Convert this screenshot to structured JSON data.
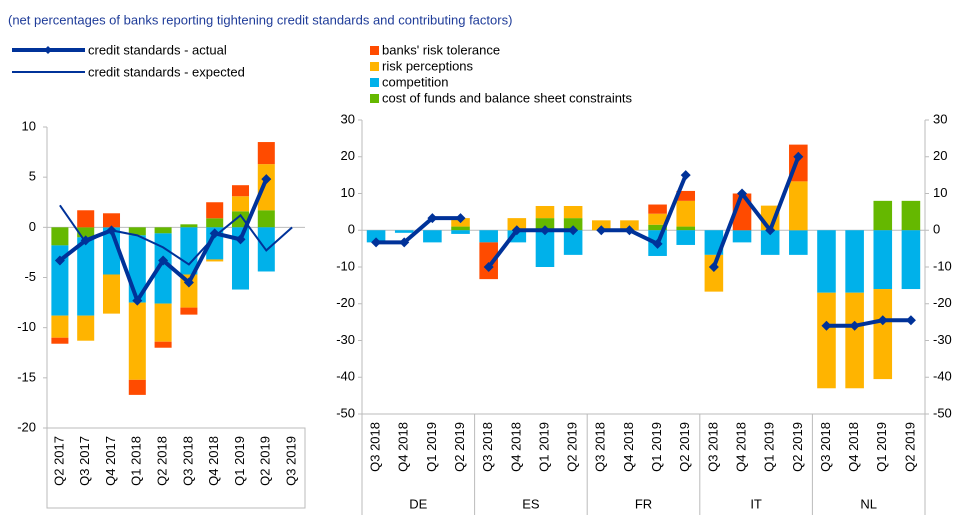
{
  "subtitle": "(net percentages of banks reporting tightening credit standards and contributing factors)",
  "chart_data": [
    {
      "type": "bar",
      "categories": [
        "Q2 2017",
        "Q3 2017",
        "Q4 2017",
        "Q1 2018",
        "Q2 2018",
        "Q3 2018",
        "Q4 2018",
        "Q1 2019",
        "Q2 2019",
        "Q3 2019"
      ],
      "series": [
        {
          "name": "banks' risk tolerance",
          "color": "#ff4b00",
          "values": [
            -0.6,
            1.7,
            1.4,
            -1.5,
            -0.6,
            -0.7,
            1.6,
            1.1,
            2.2,
            null
          ]
        },
        {
          "name": "risk perceptions",
          "color": "#ffb400",
          "values": [
            -2.2,
            -2.5,
            -3.9,
            -7.7,
            -3.8,
            -3.3,
            -0.2,
            1.5,
            4.6,
            null
          ]
        },
        {
          "name": "competition",
          "color": "#00b1ea",
          "values": [
            -7,
            -7.8,
            -4.7,
            -6.7,
            -7,
            -4.7,
            -3.2,
            -6.2,
            -4.4,
            null
          ]
        },
        {
          "name": "cost of funds and balance sheet constraints",
          "color": "#65b800",
          "values": [
            -1.8,
            -1,
            0,
            -0.8,
            -0.6,
            0.3,
            0.9,
            1.6,
            1.7,
            null
          ]
        }
      ],
      "lines": [
        {
          "name": "credit standards - actual",
          "color": "#003299",
          "values": [
            -3.3,
            -1.3,
            -0.3,
            -7.3,
            -3.3,
            -5.5,
            -0.6,
            -1.2,
            4.8,
            null
          ]
        },
        {
          "name": "credit standards - expected",
          "color": "#003299",
          "values": [
            2.2,
            -1.5,
            -0.3,
            -0.8,
            -2,
            -3.7,
            -0.9,
            1.2,
            -2.3,
            0
          ]
        }
      ],
      "ylim": [
        -20,
        10
      ],
      "yticks": [
        -20,
        -15,
        -10,
        -5,
        0,
        5,
        10
      ]
    },
    {
      "type": "grouped-bar",
      "groups": [
        "DE",
        "ES",
        "FR",
        "IT",
        "NL"
      ],
      "categories": [
        "Q3 2018",
        "Q4 2018",
        "Q1 2019",
        "Q2 2019",
        "Q3 2018",
        "Q4 2018",
        "Q1 2019",
        "Q2 2019",
        "Q3 2018",
        "Q4 2018",
        "Q1 2019",
        "Q2 2019",
        "Q3 2018",
        "Q4 2018",
        "Q1 2019",
        "Q2 2019",
        "Q3 2018",
        "Q4 2018",
        "Q1 2019",
        "Q2 2019"
      ],
      "series": [
        {
          "color": "#ff4b00",
          "values": [
            0,
            0,
            0,
            0,
            -10,
            0,
            0,
            0,
            0,
            0,
            2.5,
            2.7,
            0,
            10,
            0,
            10,
            0,
            0,
            0,
            0
          ]
        },
        {
          "color": "#ffb400",
          "values": [
            0,
            0,
            0,
            2.3,
            0,
            3.3,
            3.3,
            3.3,
            2.7,
            2.7,
            3,
            7,
            -10,
            0,
            6.7,
            13.3,
            -26,
            -26,
            -24.5,
            0
          ]
        },
        {
          "color": "#00b1ea",
          "values": [
            -3.3,
            -0.7,
            -3.3,
            -1,
            -3.3,
            -3.3,
            -10,
            -6.7,
            0,
            0,
            -7,
            -4,
            -6.7,
            -3.3,
            -6.7,
            -6.7,
            -17,
            -17,
            -16,
            -16
          ]
        },
        {
          "color": "#65b800",
          "values": [
            0,
            0,
            0,
            1,
            0,
            0,
            3.3,
            3.3,
            0,
            0,
            1.5,
            1,
            0,
            0,
            0,
            0,
            0,
            0,
            8,
            8
          ]
        }
      ],
      "line": {
        "color": "#003299",
        "values": [
          -3.3,
          -3.3,
          3.3,
          3.3,
          -10,
          0,
          0,
          0,
          0,
          0,
          -3.7,
          15,
          -10,
          10,
          0,
          20,
          -26,
          -26,
          -24.5,
          -24.5
        ]
      },
      "ylim": [
        -50,
        30
      ],
      "yticks": [
        -50,
        -40,
        -30,
        -20,
        -10,
        0,
        10,
        20,
        30
      ]
    }
  ]
}
